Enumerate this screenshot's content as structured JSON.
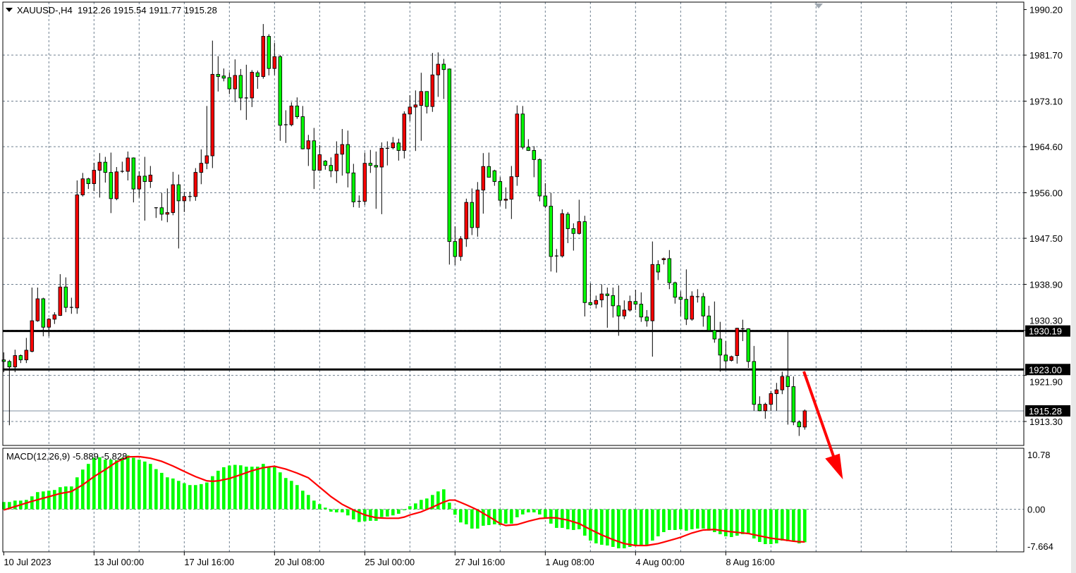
{
  "header": {
    "symbol": "XAUUSD-,H4",
    "open": "1912.26",
    "high": "1915.54",
    "low": "1911.77",
    "close": "1915.28"
  },
  "macd_header": {
    "name": "MACD(12,26,9)",
    "main": "-5.889",
    "signal": "-5.828"
  },
  "colors": {
    "bull": "#ff0000",
    "bear": "#00ff00",
    "macd_hist": "#00ff00",
    "signal": "#ff0000",
    "grid": "#708090",
    "levels": "#000000",
    "arrow": "#ff0000"
  },
  "chart_data": [
    {
      "type": "candlestick",
      "symbol": "XAUUSD-",
      "timeframe": "H4",
      "ylim": [
        1909.0,
        1990.2
      ],
      "y_ticks": [
        "1990.20",
        "1981.70",
        "1973.10",
        "1964.60",
        "1956.00",
        "1947.50",
        "1938.90",
        "1930.30",
        "1921.90",
        "1913.30"
      ],
      "x_ticks": [
        {
          "candle": 0,
          "label": "10 Jul 2023"
        },
        {
          "candle": 16,
          "label": "13 Jul 00:00"
        },
        {
          "candle": 32,
          "label": "17 Jul 16:00"
        },
        {
          "candle": 48,
          "label": "20 Jul 08:00"
        },
        {
          "candle": 64,
          "label": "25 Jul 00:00"
        },
        {
          "candle": 80,
          "label": "27 Jul 16:00"
        },
        {
          "candle": 96,
          "label": "1 Aug 08:00"
        },
        {
          "candle": 112,
          "label": "4 Aug 00:00"
        },
        {
          "candle": 128,
          "label": "8 Aug 16:00"
        }
      ],
      "grid": true,
      "bull_color_meaning": "red candle = close above open",
      "horizontal_levels": [
        {
          "price": 1930.19,
          "label": "1930.19",
          "style": "thick-black"
        },
        {
          "price": 1923.0,
          "label": "1923.00",
          "style": "thick-black"
        }
      ],
      "current_price": {
        "price": 1915.28,
        "label": "1915.28"
      },
      "annotation": "red arrow pointing down",
      "ohlc": [
        [
          1924.8,
          1926.2,
          1922.5,
          1924.5
        ],
        [
          1924.5,
          1924.8,
          1912.6,
          1923.5
        ],
        [
          1923.5,
          1926.7,
          1922.5,
          1925.6
        ],
        [
          1925.6,
          1925.8,
          1924.2,
          1924.8
        ],
        [
          1924.8,
          1928.9,
          1924.2,
          1926.6
        ],
        [
          1926.4,
          1938.3,
          1926.2,
          1932.1
        ],
        [
          1932.1,
          1938.3,
          1931.9,
          1936.2
        ],
        [
          1936.2,
          1936.4,
          1929.2,
          1930.9
        ],
        [
          1930.9,
          1932.6,
          1929.2,
          1932.4
        ],
        [
          1932.4,
          1933.7,
          1931.5,
          1933.2
        ],
        [
          1933.1,
          1940.8,
          1933.0,
          1938.4
        ],
        [
          1938.4,
          1940.2,
          1933.7,
          1934.6
        ],
        [
          1934.6,
          1936.4,
          1933.4,
          1934.5
        ],
        [
          1934.5,
          1958.3,
          1933.4,
          1955.6
        ],
        [
          1955.6,
          1959.7,
          1955.3,
          1958.6
        ],
        [
          1958.6,
          1958.8,
          1956.7,
          1957.7
        ],
        [
          1957.7,
          1961.6,
          1956.3,
          1960.2
        ],
        [
          1960.2,
          1963.4,
          1955.1,
          1961.7
        ],
        [
          1961.7,
          1962.7,
          1957.9,
          1959.8
        ],
        [
          1959.8,
          1963.5,
          1952.2,
          1954.9
        ],
        [
          1954.9,
          1960.8,
          1954.6,
          1959.9
        ],
        [
          1959.9,
          1961.8,
          1959.7,
          1960.0
        ],
        [
          1960.0,
          1963.7,
          1958.3,
          1962.5
        ],
        [
          1962.5,
          1962.6,
          1954.2,
          1956.7
        ],
        [
          1956.7,
          1960.0,
          1955.1,
          1959.1
        ],
        [
          1959.1,
          1962.7,
          1950.8,
          1958.1
        ],
        [
          1958.1,
          1961.0,
          1956.9,
          1959.3
        ],
        [
          1953.2,
          1953.3,
          1951.3,
          1953.1
        ],
        [
          1953.2,
          1956.0,
          1950.8,
          1952.0
        ],
        [
          1952.0,
          1956.8,
          1950.5,
          1952.3
        ],
        [
          1952.3,
          1959.9,
          1951.8,
          1957.5
        ],
        [
          1957.5,
          1959.4,
          1945.6,
          1954.5
        ],
        [
          1954.5,
          1956.2,
          1952.4,
          1955.3
        ],
        [
          1955.3,
          1956.2,
          1954.4,
          1955.3
        ],
        [
          1955.3,
          1960.6,
          1954.5,
          1959.8
        ],
        [
          1959.8,
          1964.1,
          1957.6,
          1961.5
        ],
        [
          1961.5,
          1972.2,
          1960.4,
          1962.9
        ],
        [
          1962.9,
          1984.4,
          1960.6,
          1978.1
        ],
        [
          1978.1,
          1981.5,
          1974.9,
          1977.7
        ],
        [
          1977.8,
          1979.2,
          1976.8,
          1977.4
        ],
        [
          1977.5,
          1978.5,
          1974.4,
          1975.4
        ],
        [
          1975.4,
          1980.9,
          1972.9,
          1977.9
        ],
        [
          1977.9,
          1979.1,
          1971.4,
          1973.7
        ],
        [
          1973.7,
          1979.9,
          1969.6,
          1973.7
        ],
        [
          1973.7,
          1978.9,
          1972.0,
          1978.5
        ],
        [
          1978.4,
          1978.8,
          1975.4,
          1977.7
        ],
        [
          1977.7,
          1987.5,
          1977.3,
          1985.2
        ],
        [
          1985.2,
          1985.6,
          1977.9,
          1979.2
        ],
        [
          1979.2,
          1984.0,
          1978.0,
          1981.4
        ],
        [
          1981.4,
          1981.7,
          1965.7,
          1968.6
        ],
        [
          1968.6,
          1971.4,
          1965.3,
          1968.7
        ],
        [
          1968.7,
          1972.9,
          1968.4,
          1972.2
        ],
        [
          1972.2,
          1973.8,
          1969.8,
          1970.2
        ],
        [
          1970.2,
          1972.2,
          1964.1,
          1964.2
        ],
        [
          1964.2,
          1966.8,
          1961.0,
          1965.7
        ],
        [
          1965.7,
          1968.1,
          1956.7,
          1960.2
        ],
        [
          1960.2,
          1964.9,
          1960.1,
          1963.1
        ],
        [
          1961.9,
          1962.1,
          1960.3,
          1961.1
        ],
        [
          1961.1,
          1962.6,
          1958.9,
          1960.1
        ],
        [
          1960.1,
          1965.6,
          1957.8,
          1963.2
        ],
        [
          1963.2,
          1967.9,
          1959.2,
          1965.0
        ],
        [
          1965.0,
          1967.6,
          1957.0,
          1959.7
        ],
        [
          1959.7,
          1961.4,
          1953.3,
          1954.3
        ],
        [
          1954.3,
          1955.5,
          1953.2,
          1954.4
        ],
        [
          1954.4,
          1963.5,
          1953.7,
          1961.5
        ],
        [
          1961.5,
          1964.0,
          1959.7,
          1961.1
        ],
        [
          1961.1,
          1963.7,
          1953.0,
          1960.8
        ],
        [
          1960.8,
          1965.4,
          1952.0,
          1964.3
        ],
        [
          1964.3,
          1965.6,
          1961.1,
          1964.3
        ],
        [
          1964.4,
          1966.4,
          1964.1,
          1965.3
        ],
        [
          1965.3,
          1966.1,
          1962.0,
          1963.9
        ],
        [
          1963.9,
          1971.2,
          1962.4,
          1970.7
        ],
        [
          1970.7,
          1974.2,
          1969.4,
          1972.0
        ],
        [
          1972.0,
          1975.1,
          1963.8,
          1972.4
        ],
        [
          1972.3,
          1978.4,
          1965.7,
          1974.9
        ],
        [
          1974.9,
          1974.9,
          1970.8,
          1972.1
        ],
        [
          1972.1,
          1982.1,
          1971.1,
          1978.0
        ],
        [
          1978.0,
          1982.2,
          1973.9,
          1980.0
        ],
        [
          1980.0,
          1981.0,
          1973.5,
          1979.0
        ],
        [
          1979.1,
          1979.2,
          1942.6,
          1946.9
        ],
        [
          1946.9,
          1949.7,
          1942.5,
          1944.1
        ],
        [
          1944.1,
          1947.9,
          1943.3,
          1947.4
        ],
        [
          1947.4,
          1954.9,
          1945.9,
          1954.2
        ],
        [
          1954.2,
          1956.8,
          1948.1,
          1949.5
        ],
        [
          1949.5,
          1958.0,
          1947.8,
          1956.5
        ],
        [
          1956.5,
          1963.4,
          1952.1,
          1960.9
        ],
        [
          1960.9,
          1963.5,
          1958.9,
          1958.9
        ],
        [
          1960.1,
          1960.3,
          1957.3,
          1958.1
        ],
        [
          1958.1,
          1958.9,
          1953.6,
          1954.6
        ],
        [
          1954.6,
          1957.0,
          1953.0,
          1954.8
        ],
        [
          1954.8,
          1961.0,
          1951.1,
          1959.0
        ],
        [
          1959.0,
          1972.3,
          1957.3,
          1970.7
        ],
        [
          1970.7,
          1972.2,
          1964.1,
          1964.5
        ],
        [
          1964.5,
          1966.0,
          1963.8,
          1963.9
        ],
        [
          1963.9,
          1964.7,
          1958.9,
          1962.2
        ],
        [
          1962.2,
          1962.4,
          1954.4,
          1955.4
        ],
        [
          1955.4,
          1957.8,
          1953.1,
          1953.5
        ],
        [
          1953.5,
          1956.0,
          1941.3,
          1944.1
        ],
        [
          1944.1,
          1945.5,
          1941.1,
          1944.2
        ],
        [
          1944.2,
          1952.9,
          1943.9,
          1952.1
        ],
        [
          1952.0,
          1952.4,
          1946.6,
          1949.3
        ],
        [
          1949.3,
          1950.3,
          1945.2,
          1948.4
        ],
        [
          1948.4,
          1954.7,
          1948.2,
          1950.6
        ],
        [
          1950.6,
          1951.7,
          1932.9,
          1935.5
        ],
        [
          1935.5,
          1939.1,
          1934.9,
          1935.1
        ],
        [
          1935.2,
          1936.8,
          1934.4,
          1935.9
        ],
        [
          1936.0,
          1938.9,
          1934.6,
          1937.1
        ],
        [
          1937.1,
          1938.3,
          1930.8,
          1936.8
        ],
        [
          1936.8,
          1938.3,
          1932.7,
          1934.9
        ],
        [
          1934.9,
          1938.7,
          1929.3,
          1933.0
        ],
        [
          1933.0,
          1935.9,
          1932.4,
          1934.1
        ],
        [
          1934.1,
          1936.8,
          1933.8,
          1935.7
        ],
        [
          1935.7,
          1937.9,
          1934.1,
          1935.2
        ],
        [
          1935.2,
          1937.4,
          1931.9,
          1932.8
        ],
        [
          1932.8,
          1934.1,
          1931.0,
          1932.1
        ],
        [
          1932.1,
          1946.9,
          1925.4,
          1942.6
        ],
        [
          1942.6,
          1943.4,
          1939.7,
          1941.2
        ],
        [
          1943.5,
          1943.9,
          1942.6,
          1943.7
        ],
        [
          1943.7,
          1945.3,
          1938.0,
          1939.2
        ],
        [
          1939.2,
          1939.4,
          1935.3,
          1936.5
        ],
        [
          1936.5,
          1937.6,
          1933.0,
          1936.1
        ],
        [
          1936.1,
          1941.7,
          1931.3,
          1932.4
        ],
        [
          1932.4,
          1937.6,
          1932.1,
          1936.7
        ],
        [
          1936.6,
          1938.0,
          1935.5,
          1936.6
        ],
        [
          1936.6,
          1937.3,
          1931.0,
          1933.0
        ],
        [
          1933.0,
          1934.9,
          1930.2,
          1930.3
        ],
        [
          1930.3,
          1935.7,
          1928.0,
          1928.7
        ],
        [
          1928.7,
          1931.9,
          1922.6,
          1925.7
        ],
        [
          1925.7,
          1928.3,
          1923.1,
          1924.6
        ],
        [
          1924.7,
          1925.6,
          1924.5,
          1925.4
        ],
        [
          1925.6,
          1930.8,
          1924.1,
          1930.7
        ],
        [
          1930.6,
          1932.3,
          1928.3,
          1930.6
        ],
        [
          1930.6,
          1930.7,
          1923.3,
          1924.5
        ],
        [
          1924.5,
          1927.4,
          1915.3,
          1916.5
        ],
        [
          1916.5,
          1918.0,
          1915.2,
          1915.3
        ],
        [
          1915.3,
          1916.8,
          1913.8,
          1916.5
        ],
        [
          1916.5,
          1919.0,
          1915.3,
          1918.5
        ],
        [
          1918.5,
          1920.5,
          1915.3,
          1919.2
        ],
        [
          1919.2,
          1922.6,
          1918.4,
          1921.7
        ],
        [
          1921.7,
          1930.2,
          1912.7,
          1919.8
        ],
        [
          1919.8,
          1921.7,
          1912.6,
          1913.2
        ],
        [
          1913.2,
          1913.5,
          1910.6,
          1912.3
        ],
        [
          1912.26,
          1915.54,
          1911.77,
          1915.28
        ]
      ]
    },
    {
      "type": "bar",
      "indicator": "MACD(12,26,9)",
      "ylim": [
        -7.664,
        10.78
      ],
      "y_ticks": [
        "10.78",
        "0.00",
        "-7.664"
      ],
      "histogram": [
        1.3,
        1.3,
        1.55,
        1.55,
        1.68,
        2.31,
        3.07,
        3.19,
        3.32,
        3.45,
        3.95,
        4.08,
        4.08,
        5.71,
        7.1,
        8.11,
        9.2,
        9.29,
        8.87,
        8.87,
        8.78,
        9.2,
        9.62,
        9.2,
        8.87,
        8.53,
        8.11,
        7.18,
        6.51,
        5.71,
        5.5,
        5.08,
        4.66,
        4.33,
        4.33,
        4.5,
        4.79,
        5.92,
        6.89,
        7.52,
        7.82,
        7.94,
        7.86,
        7.61,
        7.61,
        7.61,
        8.11,
        7.61,
        7.52,
        6.6,
        5.59,
        5.08,
        4.33,
        3.32,
        2.56,
        1.55,
        0.92,
        0.29,
        -0.42,
        -0.55,
        -0.55,
        -1.09,
        -1.81,
        -2.27,
        -2.14,
        -2.06,
        -2.06,
        -1.39,
        -1.3,
        -1.09,
        -0.8,
        -0.17,
        0.55,
        1.05,
        1.68,
        1.93,
        2.56,
        3.19,
        3.57,
        1.18,
        -0.97,
        -2.35,
        -2.69,
        -3.45,
        -3.45,
        -2.94,
        -2.82,
        -2.69,
        -2.82,
        -2.56,
        -2.56,
        -1.43,
        -0.92,
        -0.55,
        -0.55,
        -0.92,
        -1.55,
        -2.56,
        -3.32,
        -3.32,
        -3.57,
        -3.7,
        -3.57,
        -4.71,
        -5.59,
        -6.09,
        -6.34,
        -6.47,
        -6.72,
        -6.97,
        -6.97,
        -6.72,
        -6.47,
        -6.47,
        -6.34,
        -5.59,
        -4.83,
        -4.08,
        -3.7,
        -3.7,
        -3.57,
        -3.82,
        -3.57,
        -3.45,
        -3.45,
        -3.82,
        -4.08,
        -4.45,
        -4.83,
        -4.96,
        -4.71,
        -4.45,
        -4.45,
        -5.21,
        -5.84,
        -6.22,
        -6.22,
        -6.09,
        -5.59,
        -5.71,
        -5.71,
        -6.09,
        -5.889
      ],
      "signal": [
        -0.13,
        0.18,
        0.49,
        0.8,
        1.12,
        1.43,
        1.71,
        1.99,
        2.26,
        2.54,
        2.82,
        3.0,
        3.19,
        3.78,
        4.37,
        5.1,
        5.84,
        6.47,
        7.1,
        7.78,
        8.45,
        8.91,
        9.37,
        9.39,
        9.41,
        9.27,
        9.12,
        8.85,
        8.57,
        8.15,
        7.73,
        7.25,
        6.76,
        6.3,
        5.84,
        5.46,
        5.08,
        5.0,
        5.08,
        5.29,
        5.5,
        5.84,
        6.18,
        6.54,
        6.89,
        7.17,
        7.44,
        7.57,
        7.69,
        7.44,
        7.18,
        6.83,
        6.47,
        6.05,
        5.63,
        4.79,
        3.95,
        3.11,
        2.27,
        1.58,
        0.88,
        0.38,
        -0.13,
        -0.57,
        -1.01,
        -1.26,
        -1.51,
        -1.56,
        -1.6,
        -1.6,
        -1.6,
        -1.39,
        -1.01,
        -0.74,
        -0.46,
        -0.04,
        0.38,
        0.84,
        1.3,
        1.64,
        1.64,
        1.22,
        0.8,
        0.34,
        -0.13,
        -0.72,
        -1.3,
        -1.93,
        -2.56,
        -2.9,
        -2.82,
        -2.73,
        -2.44,
        -2.14,
        -1.89,
        -1.64,
        -1.58,
        -1.51,
        -1.55,
        -1.74,
        -1.93,
        -2.25,
        -2.56,
        -3.09,
        -3.61,
        -4.1,
        -4.58,
        -5.0,
        -5.42,
        -5.78,
        -6.13,
        -6.3,
        -6.47,
        -6.47,
        -6.47,
        -6.3,
        -6.13,
        -5.86,
        -5.59,
        -5.3,
        -5.0,
        -4.62,
        -4.24,
        -3.97,
        -3.7,
        -3.66,
        -3.61,
        -3.76,
        -3.91,
        -4.02,
        -4.12,
        -4.23,
        -4.33,
        -4.54,
        -4.75,
        -4.96,
        -5.17,
        -5.3,
        -5.42,
        -5.57,
        -5.71,
        -5.8,
        -5.828
      ]
    }
  ]
}
